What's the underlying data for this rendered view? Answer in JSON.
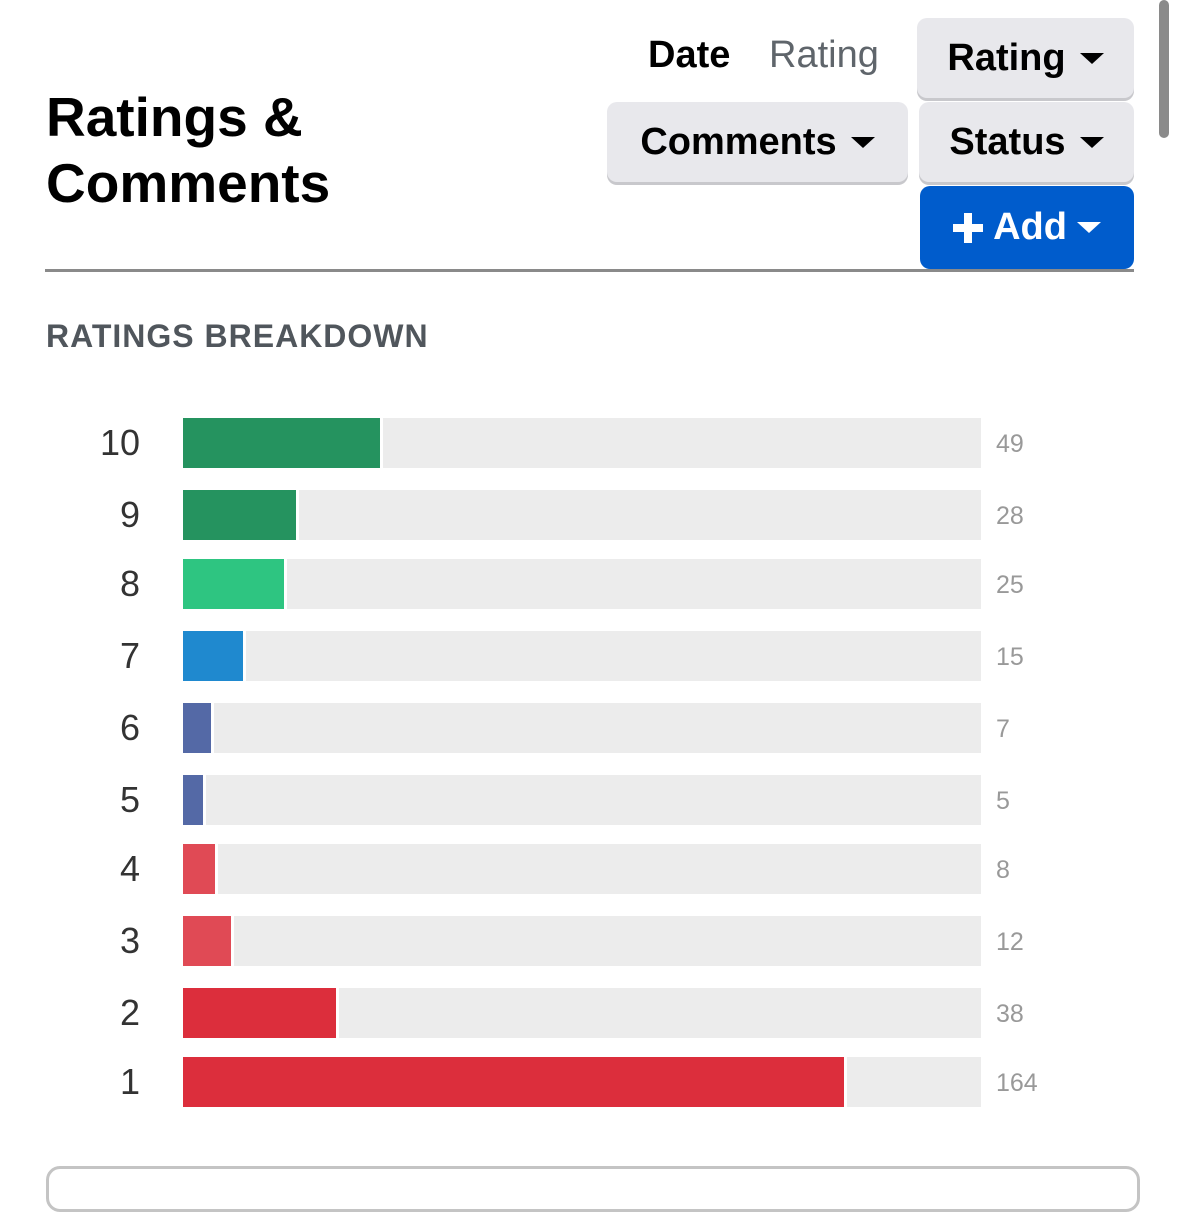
{
  "header": {
    "title_line1": "Ratings &",
    "title_line2": "Comments"
  },
  "sort": {
    "date_label": "Date",
    "rating_label": "Rating",
    "active": "Date"
  },
  "filters": {
    "rating": "Rating",
    "comments": "Comments",
    "status": "Status",
    "add": "Add"
  },
  "icons": {
    "add": "plus-icon",
    "dropdown": "caret-down-icon"
  },
  "colors": {
    "primary": "#005ccc"
  },
  "chart_data": {
    "type": "bar",
    "title": "RATINGS BREAKDOWN",
    "orientation": "horizontal",
    "categories": [
      "10",
      "9",
      "8",
      "7",
      "6",
      "5",
      "4",
      "3",
      "2",
      "1"
    ],
    "values": [
      49,
      28,
      25,
      15,
      7,
      5,
      8,
      12,
      38,
      164
    ],
    "colors": [
      "#25935f",
      "#25935f",
      "#2ec581",
      "#1f89cf",
      "#5469a6",
      "#5469a6",
      "#e04a55",
      "#e04a55",
      "#dc2e3c",
      "#dc2e3c"
    ]
  }
}
